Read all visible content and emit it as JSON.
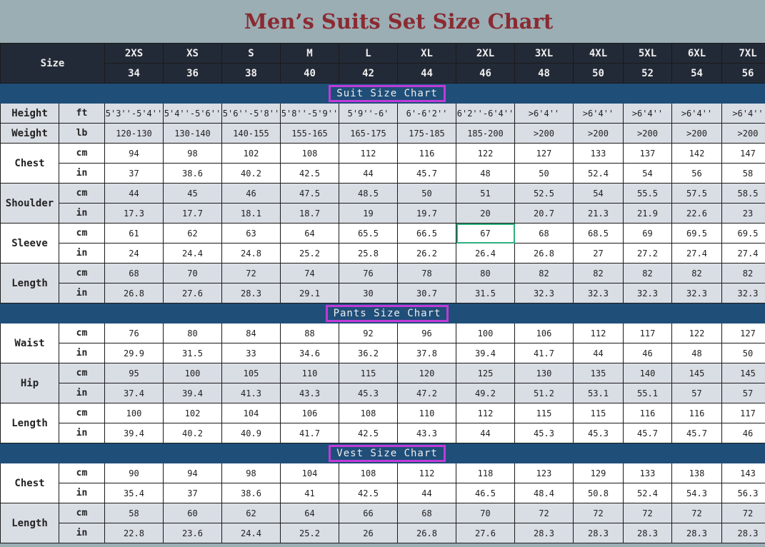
{
  "title": "Men’s Suits Set Size Chart",
  "header": {
    "label": "Size",
    "sizes": [
      "2XS",
      "XS",
      "S",
      "M",
      "L",
      "XL",
      "2XL",
      "3XL",
      "4XL",
      "5XL",
      "6XL",
      "7XL"
    ],
    "numbers": [
      "34",
      "36",
      "38",
      "40",
      "42",
      "44",
      "46",
      "48",
      "50",
      "52",
      "54",
      "56"
    ]
  },
  "sections": [
    {
      "title": "Suit Size Chart",
      "rows": [
        {
          "label": "Height",
          "shade": "g",
          "units": [
            {
              "unit": "ft",
              "values": [
                "5'3''-5'4''",
                "5'4''-5'6''",
                "5'6''-5'8''",
                "5'8''-5'9''",
                "5'9''-6'",
                "6'-6'2''",
                "6'2''-6'4''",
                ">6'4''",
                ">6'4''",
                ">6'4''",
                ">6'4''",
                ">6'4''"
              ]
            }
          ]
        },
        {
          "label": "Weight",
          "shade": "g",
          "units": [
            {
              "unit": "lb",
              "values": [
                "120-130",
                "130-140",
                "140-155",
                "155-165",
                "165-175",
                "175-185",
                "185-200",
                ">200",
                ">200",
                ">200",
                ">200",
                ">200"
              ]
            }
          ]
        },
        {
          "label": "Chest",
          "shade": "w",
          "units": [
            {
              "unit": "cm",
              "values": [
                "94",
                "98",
                "102",
                "108",
                "112",
                "116",
                "122",
                "127",
                "133",
                "137",
                "142",
                "147"
              ]
            },
            {
              "unit": "in",
              "values": [
                "37",
                "38.6",
                "40.2",
                "42.5",
                "44",
                "45.7",
                "48",
                "50",
                "52.4",
                "54",
                "56",
                "58"
              ]
            }
          ]
        },
        {
          "label": "Shoulder",
          "shade": "g",
          "units": [
            {
              "unit": "cm",
              "values": [
                "44",
                "45",
                "46",
                "47.5",
                "48.5",
                "50",
                "51",
                "52.5",
                "54",
                "55.5",
                "57.5",
                "58.5"
              ]
            },
            {
              "unit": "in",
              "values": [
                "17.3",
                "17.7",
                "18.1",
                "18.7",
                "19",
                "19.7",
                "20",
                "20.7",
                "21.3",
                "21.9",
                "22.6",
                "23"
              ]
            }
          ]
        },
        {
          "label": "Sleeve",
          "shade": "w",
          "units": [
            {
              "unit": "cm",
              "values": [
                "61",
                "62",
                "63",
                "64",
                "65.5",
                "66.5",
                "67",
                "68",
                "68.5",
                "69",
                "69.5",
                "69.5"
              ]
            },
            {
              "unit": "in",
              "values": [
                "24",
                "24.4",
                "24.8",
                "25.2",
                "25.8",
                "26.2",
                "26.4",
                "26.8",
                "27",
                "27.2",
                "27.4",
                "27.4"
              ]
            }
          ]
        },
        {
          "label": "Length",
          "shade": "g",
          "units": [
            {
              "unit": "cm",
              "values": [
                "68",
                "70",
                "72",
                "74",
                "76",
                "78",
                "80",
                "82",
                "82",
                "82",
                "82",
                "82"
              ]
            },
            {
              "unit": "in",
              "values": [
                "26.8",
                "27.6",
                "28.3",
                "29.1",
                "30",
                "30.7",
                "31.5",
                "32.3",
                "32.3",
                "32.3",
                "32.3",
                "32.3"
              ]
            }
          ]
        }
      ]
    },
    {
      "title": "Pants Size Chart",
      "rows": [
        {
          "label": "Waist",
          "shade": "w",
          "units": [
            {
              "unit": "cm",
              "values": [
                "76",
                "80",
                "84",
                "88",
                "92",
                "96",
                "100",
                "106",
                "112",
                "117",
                "122",
                "127"
              ]
            },
            {
              "unit": "in",
              "values": [
                "29.9",
                "31.5",
                "33",
                "34.6",
                "36.2",
                "37.8",
                "39.4",
                "41.7",
                "44",
                "46",
                "48",
                "50"
              ]
            }
          ]
        },
        {
          "label": "Hip",
          "shade": "g",
          "units": [
            {
              "unit": "cm",
              "values": [
                "95",
                "100",
                "105",
                "110",
                "115",
                "120",
                "125",
                "130",
                "135",
                "140",
                "145",
                "145"
              ]
            },
            {
              "unit": "in",
              "values": [
                "37.4",
                "39.4",
                "41.3",
                "43.3",
                "45.3",
                "47.2",
                "49.2",
                "51.2",
                "53.1",
                "55.1",
                "57",
                "57"
              ]
            }
          ]
        },
        {
          "label": "Length",
          "shade": "w",
          "units": [
            {
              "unit": "cm",
              "values": [
                "100",
                "102",
                "104",
                "106",
                "108",
                "110",
                "112",
                "115",
                "115",
                "116",
                "116",
                "117"
              ]
            },
            {
              "unit": "in",
              "values": [
                "39.4",
                "40.2",
                "40.9",
                "41.7",
                "42.5",
                "43.3",
                "44",
                "45.3",
                "45.3",
                "45.7",
                "45.7",
                "46"
              ]
            }
          ]
        }
      ]
    },
    {
      "title": "Vest Size Chart",
      "rows": [
        {
          "label": "Chest",
          "shade": "w",
          "units": [
            {
              "unit": "cm",
              "values": [
                "90",
                "94",
                "98",
                "104",
                "108",
                "112",
                "118",
                "123",
                "129",
                "133",
                "138",
                "143"
              ]
            },
            {
              "unit": "in",
              "values": [
                "35.4",
                "37",
                "38.6",
                "41",
                "42.5",
                "44",
                "46.5",
                "48.4",
                "50.8",
                "52.4",
                "54.3",
                "56.3"
              ]
            }
          ]
        },
        {
          "label": "Length",
          "shade": "g",
          "units": [
            {
              "unit": "cm",
              "values": [
                "58",
                "60",
                "62",
                "64",
                "66",
                "68",
                "70",
                "72",
                "72",
                "72",
                "72",
                "72"
              ]
            },
            {
              "unit": "in",
              "values": [
                "22.8",
                "23.6",
                "24.4",
                "25.2",
                "26",
                "26.8",
                "27.6",
                "28.3",
                "28.3",
                "28.3",
                "28.3",
                "28.3"
              ]
            }
          ]
        }
      ]
    }
  ],
  "selected_cell": {
    "row": "Sleeve cm",
    "size": "2XL"
  }
}
